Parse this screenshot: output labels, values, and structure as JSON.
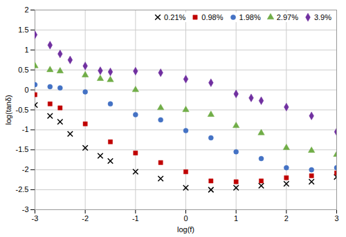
{
  "chart_data": {
    "type": "scatter",
    "xlabel": "log(f)",
    "ylabel": "log(tanδ)",
    "xlim": [
      -3,
      3
    ],
    "ylim": [
      -3,
      2
    ],
    "xticks": [
      -3,
      -2,
      -1,
      0,
      1,
      2,
      3
    ],
    "yticks": [
      -3,
      -2.5,
      -2,
      -1.5,
      -1,
      -0.5,
      0,
      0.5,
      1,
      1.5,
      2
    ],
    "grid": true,
    "legend": "upper right",
    "series": [
      {
        "name": "0.21%",
        "color": "#000000",
        "marker": "x",
        "x": [
          -3.0,
          -2.7,
          -2.5,
          -2.3,
          -2.0,
          -1.7,
          -1.5,
          -1.0,
          -0.5,
          0.0,
          0.5,
          1.0,
          1.5,
          2.0,
          2.5,
          3.0
        ],
        "values": [
          -0.38,
          -0.65,
          -0.8,
          -1.1,
          -1.45,
          -1.65,
          -1.78,
          -2.05,
          -2.22,
          -2.45,
          -2.5,
          -2.45,
          -2.4,
          -2.35,
          -2.3,
          -2.18
        ]
      },
      {
        "name": "0.98%",
        "color": "#c00000",
        "marker": "square",
        "x": [
          -3.0,
          -2.7,
          -2.5,
          -2.0,
          -1.5,
          -1.0,
          -0.5,
          0.0,
          0.5,
          1.0,
          1.5,
          2.0,
          2.5,
          3.0
        ],
        "values": [
          -0.12,
          -0.35,
          -0.45,
          -0.85,
          -1.3,
          -1.58,
          -1.82,
          -2.05,
          -2.28,
          -2.3,
          -2.28,
          -2.2,
          -2.15,
          -2.08
        ]
      },
      {
        "name": "1.98%",
        "color": "#4472c4",
        "marker": "circle",
        "x": [
          -3.0,
          -2.7,
          -2.5,
          -2.0,
          -1.5,
          -1.0,
          -0.5,
          0.0,
          0.5,
          1.0,
          1.5,
          2.0,
          2.5,
          3.0
        ],
        "values": [
          0.13,
          0.08,
          0.05,
          -0.05,
          -0.35,
          -0.62,
          -0.75,
          -1.02,
          -1.2,
          -1.55,
          -1.72,
          -1.95,
          -2.0,
          -1.95
        ]
      },
      {
        "name": "2.97%",
        "color": "#70ad47",
        "marker": "triangle",
        "x": [
          -3.0,
          -2.7,
          -2.5,
          -2.0,
          -1.7,
          -1.5,
          -1.0,
          -0.5,
          0.0,
          0.5,
          1.0,
          1.5,
          2.0,
          2.5,
          3.0
        ],
        "values": [
          0.6,
          0.5,
          0.47,
          0.37,
          0.28,
          0.25,
          0.0,
          -0.45,
          -0.5,
          -0.62,
          -0.9,
          -1.08,
          -1.45,
          -1.52,
          -1.62
        ]
      },
      {
        "name": "3.9%",
        "color": "#7030a0",
        "marker": "diamond",
        "x": [
          -3.0,
          -2.7,
          -2.5,
          -2.3,
          -2.0,
          -1.7,
          -1.5,
          -1.0,
          -0.5,
          0.0,
          0.5,
          1.0,
          1.3,
          1.5,
          2.0,
          2.5,
          3.0
        ],
        "values": [
          1.38,
          1.12,
          0.9,
          0.75,
          0.6,
          0.48,
          0.45,
          0.47,
          0.43,
          0.27,
          0.18,
          -0.1,
          -0.2,
          -0.27,
          -0.43,
          -0.65,
          -1.05
        ]
      }
    ]
  }
}
